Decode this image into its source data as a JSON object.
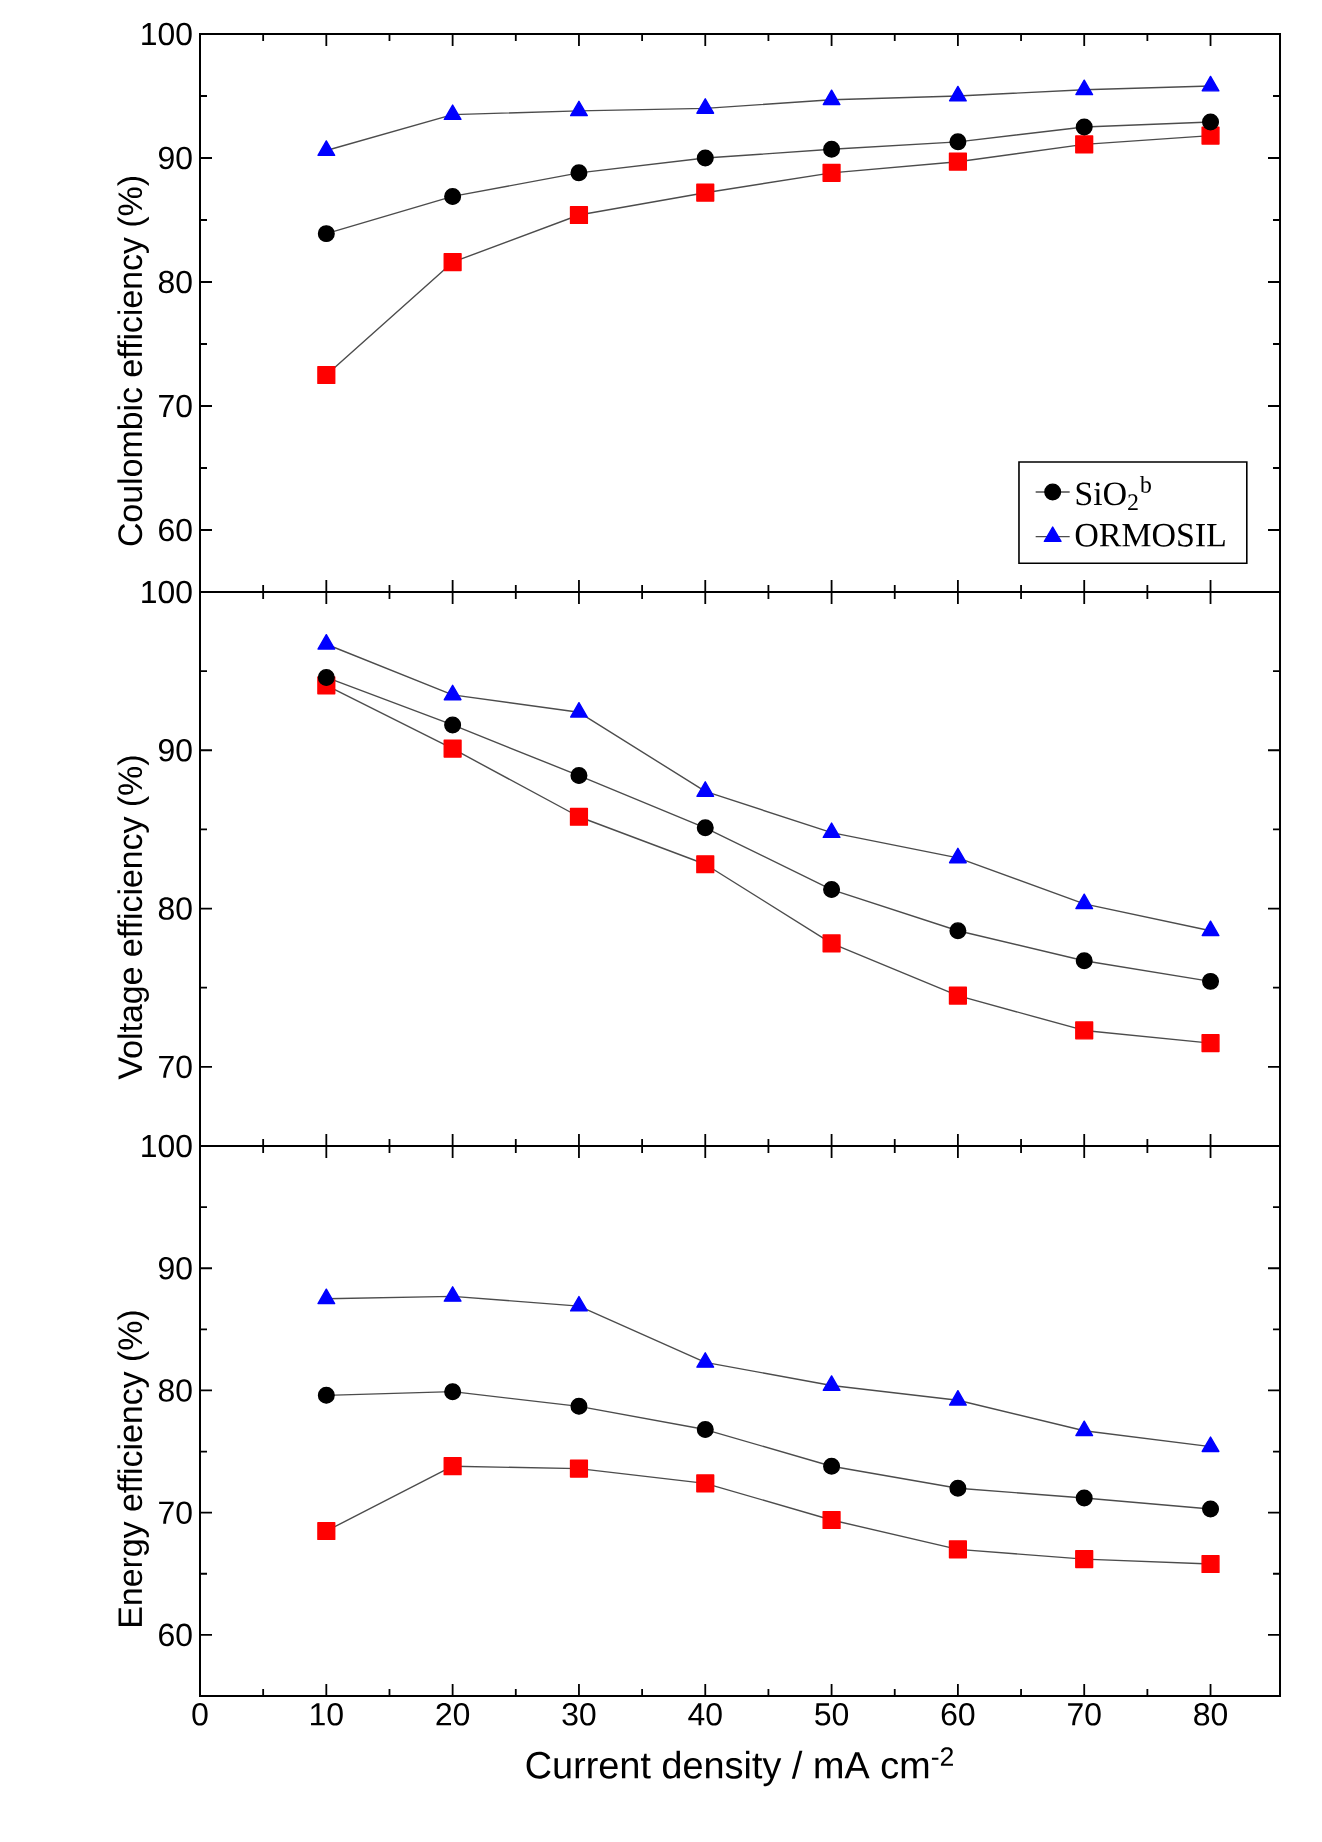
{
  "chart_data": [
    {
      "type": "line",
      "ylabel": "Coulombic efficiency (%)",
      "x": [
        10,
        20,
        30,
        40,
        50,
        60,
        70,
        80
      ],
      "xlim": [
        0,
        85.5
      ],
      "xticks": [
        0,
        10,
        20,
        30,
        40,
        50,
        60,
        70,
        80
      ],
      "ylim": [
        55,
        100
      ],
      "yticks": [
        60,
        70,
        80,
        90,
        100
      ],
      "tick_labels": "y",
      "legend": "bottom right",
      "line_style": "solid",
      "series": [
        {
          "color": "#ff0000",
          "marker": "square",
          "values": [
            72.5,
            81.6,
            85.4,
            87.2,
            88.8,
            89.7,
            91.1,
            91.8
          ]
        },
        {
          "name": "SiO$_{2}$$^{b}$",
          "color": "#000000",
          "marker": "circle",
          "values": [
            83.9,
            86.9,
            88.8,
            90.0,
            90.7,
            91.3,
            92.5,
            92.9
          ]
        },
        {
          "name": "ORMOSIL",
          "color": "#0000ff",
          "marker": "triangle",
          "values": [
            90.6,
            93.5,
            93.8,
            94.0,
            94.7,
            95.0,
            95.5,
            95.8
          ]
        }
      ]
    },
    {
      "type": "line",
      "ylabel": "Voltage efficiency (%)",
      "x": [
        10,
        20,
        30,
        40,
        50,
        60,
        70,
        80
      ],
      "xlim": [
        0,
        85.5
      ],
      "xticks": [
        0,
        10,
        20,
        30,
        40,
        50,
        60,
        70,
        80
      ],
      "ylim": [
        65,
        100
      ],
      "yticks": [
        70,
        80,
        90,
        100
      ],
      "tick_labels": "y",
      "line_style": "solid",
      "series": [
        {
          "color": "#ff0000",
          "marker": "square",
          "values": [
            94.1,
            90.1,
            85.8,
            82.8,
            77.8,
            74.5,
            72.3,
            71.5
          ]
        },
        {
          "color": "#000000",
          "marker": "circle",
          "values": [
            94.6,
            91.6,
            88.4,
            85.1,
            81.2,
            78.6,
            76.7,
            75.4
          ]
        },
        {
          "color": "#0000ff",
          "marker": "triangle",
          "values": [
            96.7,
            93.5,
            92.4,
            87.4,
            84.8,
            83.2,
            80.3,
            78.6
          ]
        }
      ]
    },
    {
      "type": "line",
      "ylabel": "Energy efficiency (%)",
      "xlabel": "Current density / mA cm$^{-2}$",
      "x": [
        10,
        20,
        30,
        40,
        50,
        60,
        70,
        80
      ],
      "xlim": [
        0,
        85.5
      ],
      "xticks": [
        0,
        10,
        20,
        30,
        40,
        50,
        60,
        70,
        80
      ],
      "ylim": [
        55,
        100
      ],
      "yticks": [
        60,
        70,
        80,
        90,
        100
      ],
      "line_style": "solid",
      "series": [
        {
          "color": "#ff0000",
          "marker": "square",
          "values": [
            68.5,
            73.8,
            73.6,
            72.4,
            69.4,
            67.0,
            66.2,
            65.8
          ]
        },
        {
          "color": "#000000",
          "marker": "circle",
          "values": [
            79.6,
            79.9,
            78.7,
            76.8,
            73.8,
            72.0,
            71.2,
            70.3
          ]
        },
        {
          "color": "#0000ff",
          "marker": "triangle",
          "values": [
            87.5,
            87.7,
            86.9,
            82.3,
            80.4,
            79.2,
            76.7,
            75.4
          ]
        }
      ]
    }
  ]
}
